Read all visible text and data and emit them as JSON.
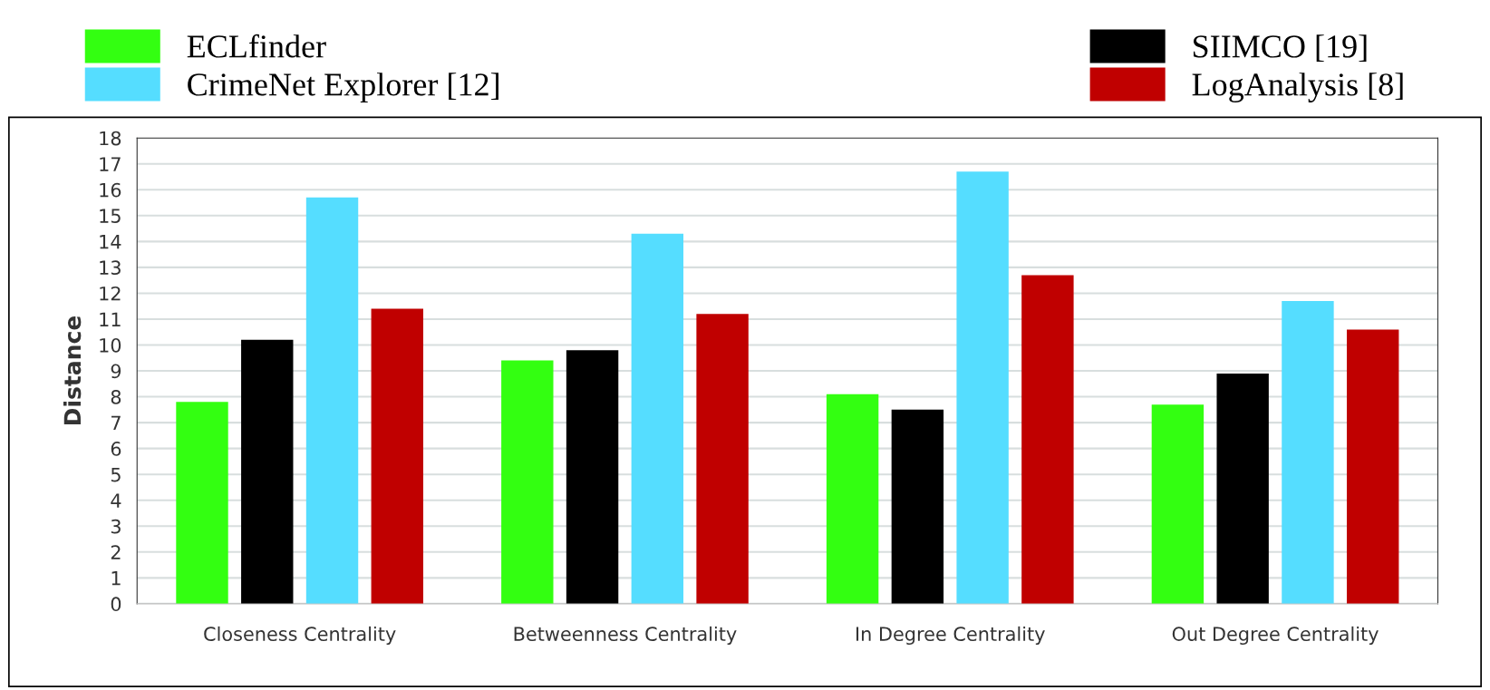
{
  "chart_data": {
    "type": "bar",
    "ylabel": "Distance",
    "categories": [
      "Closeness Centrality",
      "Betweenness Centrality",
      "In Degree Centrality",
      "Out Degree Centrality"
    ],
    "series": [
      {
        "name": "ECLfinder",
        "color": "#33ff11",
        "values": [
          7.8,
          9.4,
          8.1,
          7.7
        ]
      },
      {
        "name": "SIIMCO [19]",
        "color": "#000000",
        "values": [
          10.2,
          9.8,
          7.5,
          8.9
        ]
      },
      {
        "name": "CrimeNet Explorer [12]",
        "color": "#55ddff",
        "values": [
          15.7,
          14.3,
          16.7,
          11.7
        ]
      },
      {
        "name": "LogAnalysis [8]",
        "color": "#c00000",
        "values": [
          11.4,
          11.2,
          12.7,
          10.6
        ]
      }
    ],
    "ylim": [
      0,
      18
    ],
    "yticks": [
      0,
      1,
      2,
      3,
      4,
      5,
      6,
      7,
      8,
      9,
      10,
      11,
      12,
      13,
      14,
      15,
      16,
      17,
      18
    ],
    "grid": "y",
    "legend": "top"
  }
}
